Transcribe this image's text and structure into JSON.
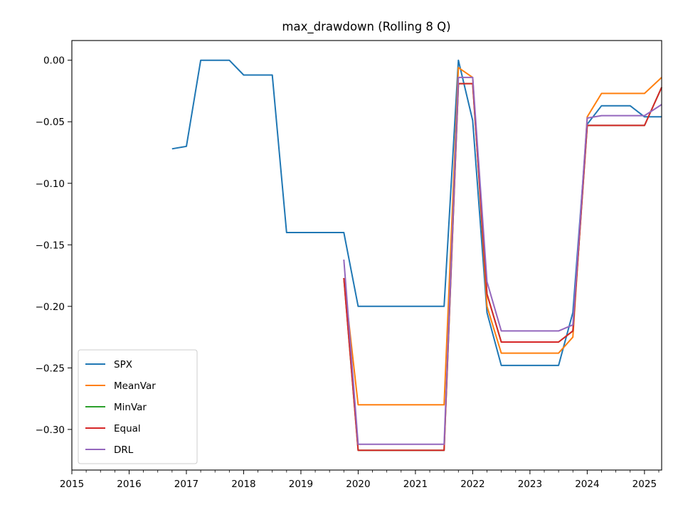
{
  "chart_data": {
    "type": "line",
    "title": "max_drawdown (Rolling 8 Q)",
    "xlabel": "",
    "ylabel": "",
    "xlim": [
      2015.0,
      2025.3
    ],
    "ylim": [
      -0.333,
      0.016
    ],
    "x_ticks": [
      2015,
      2016,
      2017,
      2018,
      2019,
      2020,
      2021,
      2022,
      2023,
      2024,
      2025
    ],
    "x_minor_ticks_per_year": 4,
    "y_ticks": [
      0.0,
      -0.05,
      -0.1,
      -0.15,
      -0.2,
      -0.25,
      -0.3
    ],
    "y_tick_labels": [
      "0.00",
      "−0.05",
      "−0.10",
      "−0.15",
      "−0.20",
      "−0.25",
      "−0.30"
    ],
    "grid": false,
    "legend_position": "lower-left",
    "series": [
      {
        "name": "SPX",
        "color": "#1f77b4",
        "points": [
          [
            2016.75,
            -0.072
          ],
          [
            2017.0,
            -0.07
          ],
          [
            2017.25,
            0.0
          ],
          [
            2017.5,
            0.0
          ],
          [
            2017.75,
            0.0
          ],
          [
            2018.0,
            -0.012
          ],
          [
            2018.25,
            -0.012
          ],
          [
            2018.5,
            -0.012
          ],
          [
            2018.75,
            -0.14
          ],
          [
            2019.0,
            -0.14
          ],
          [
            2019.25,
            -0.14
          ],
          [
            2019.5,
            -0.14
          ],
          [
            2019.75,
            -0.14
          ],
          [
            2020.0,
            -0.2
          ],
          [
            2020.25,
            -0.2
          ],
          [
            2020.5,
            -0.2
          ],
          [
            2020.75,
            -0.2
          ],
          [
            2021.0,
            -0.2
          ],
          [
            2021.25,
            -0.2
          ],
          [
            2021.5,
            -0.2
          ],
          [
            2021.75,
            0.0
          ],
          [
            2022.0,
            -0.049
          ],
          [
            2022.25,
            -0.205
          ],
          [
            2022.5,
            -0.248
          ],
          [
            2022.75,
            -0.248
          ],
          [
            2023.0,
            -0.248
          ],
          [
            2023.25,
            -0.248
          ],
          [
            2023.5,
            -0.248
          ],
          [
            2023.75,
            -0.205
          ],
          [
            2024.0,
            -0.052
          ],
          [
            2024.25,
            -0.037
          ],
          [
            2024.5,
            -0.037
          ],
          [
            2024.75,
            -0.037
          ],
          [
            2025.0,
            -0.046
          ],
          [
            2025.25,
            -0.046
          ],
          [
            2025.3,
            -0.046
          ]
        ]
      },
      {
        "name": "MeanVar",
        "color": "#ff7f0e",
        "points": [
          [
            2019.75,
            -0.177
          ],
          [
            2020.0,
            -0.28
          ],
          [
            2020.25,
            -0.28
          ],
          [
            2020.5,
            -0.28
          ],
          [
            2020.75,
            -0.28
          ],
          [
            2021.0,
            -0.28
          ],
          [
            2021.25,
            -0.28
          ],
          [
            2021.5,
            -0.28
          ],
          [
            2021.75,
            -0.006
          ],
          [
            2022.0,
            -0.014
          ],
          [
            2022.25,
            -0.2
          ],
          [
            2022.5,
            -0.238
          ],
          [
            2022.75,
            -0.238
          ],
          [
            2023.0,
            -0.238
          ],
          [
            2023.25,
            -0.238
          ],
          [
            2023.5,
            -0.238
          ],
          [
            2023.75,
            -0.225
          ],
          [
            2024.0,
            -0.046
          ],
          [
            2024.25,
            -0.027
          ],
          [
            2024.5,
            -0.027
          ],
          [
            2024.75,
            -0.027
          ],
          [
            2025.0,
            -0.027
          ],
          [
            2025.3,
            -0.014
          ]
        ]
      },
      {
        "name": "MinVar",
        "color": "#2ca02c",
        "points": [
          [
            2019.75,
            -0.177
          ],
          [
            2020.0,
            -0.317
          ],
          [
            2020.25,
            -0.317
          ],
          [
            2020.5,
            -0.317
          ],
          [
            2020.75,
            -0.317
          ],
          [
            2021.0,
            -0.317
          ],
          [
            2021.25,
            -0.317
          ],
          [
            2021.5,
            -0.317
          ],
          [
            2021.75,
            -0.019
          ],
          [
            2022.0,
            -0.019
          ],
          [
            2022.25,
            -0.19
          ],
          [
            2022.5,
            -0.229
          ],
          [
            2022.75,
            -0.229
          ],
          [
            2023.0,
            -0.229
          ],
          [
            2023.25,
            -0.229
          ],
          [
            2023.5,
            -0.229
          ],
          [
            2023.75,
            -0.22
          ],
          [
            2024.0,
            -0.053
          ],
          [
            2024.25,
            -0.053
          ],
          [
            2024.5,
            -0.053
          ],
          [
            2024.75,
            -0.053
          ],
          [
            2025.0,
            -0.053
          ],
          [
            2025.3,
            -0.022
          ]
        ]
      },
      {
        "name": "Equal",
        "color": "#d62728",
        "points": [
          [
            2019.75,
            -0.177
          ],
          [
            2020.0,
            -0.317
          ],
          [
            2020.25,
            -0.317
          ],
          [
            2020.5,
            -0.317
          ],
          [
            2020.75,
            -0.317
          ],
          [
            2021.0,
            -0.317
          ],
          [
            2021.25,
            -0.317
          ],
          [
            2021.5,
            -0.317
          ],
          [
            2021.75,
            -0.019
          ],
          [
            2022.0,
            -0.019
          ],
          [
            2022.25,
            -0.19
          ],
          [
            2022.5,
            -0.229
          ],
          [
            2022.75,
            -0.229
          ],
          [
            2023.0,
            -0.229
          ],
          [
            2023.25,
            -0.229
          ],
          [
            2023.5,
            -0.229
          ],
          [
            2023.75,
            -0.22
          ],
          [
            2024.0,
            -0.053
          ],
          [
            2024.25,
            -0.053
          ],
          [
            2024.5,
            -0.053
          ],
          [
            2024.75,
            -0.053
          ],
          [
            2025.0,
            -0.053
          ],
          [
            2025.3,
            -0.022
          ]
        ]
      },
      {
        "name": "DRL",
        "color": "#9467bd",
        "points": [
          [
            2019.75,
            -0.162
          ],
          [
            2020.0,
            -0.312
          ],
          [
            2020.25,
            -0.312
          ],
          [
            2020.5,
            -0.312
          ],
          [
            2020.75,
            -0.312
          ],
          [
            2021.0,
            -0.312
          ],
          [
            2021.25,
            -0.312
          ],
          [
            2021.5,
            -0.312
          ],
          [
            2021.75,
            -0.014
          ],
          [
            2022.0,
            -0.014
          ],
          [
            2022.25,
            -0.18
          ],
          [
            2022.5,
            -0.22
          ],
          [
            2022.75,
            -0.22
          ],
          [
            2023.0,
            -0.22
          ],
          [
            2023.25,
            -0.22
          ],
          [
            2023.5,
            -0.22
          ],
          [
            2023.75,
            -0.215
          ],
          [
            2024.0,
            -0.047
          ],
          [
            2024.25,
            -0.045
          ],
          [
            2024.5,
            -0.045
          ],
          [
            2024.75,
            -0.045
          ],
          [
            2025.0,
            -0.045
          ],
          [
            2025.3,
            -0.036
          ]
        ]
      }
    ]
  }
}
